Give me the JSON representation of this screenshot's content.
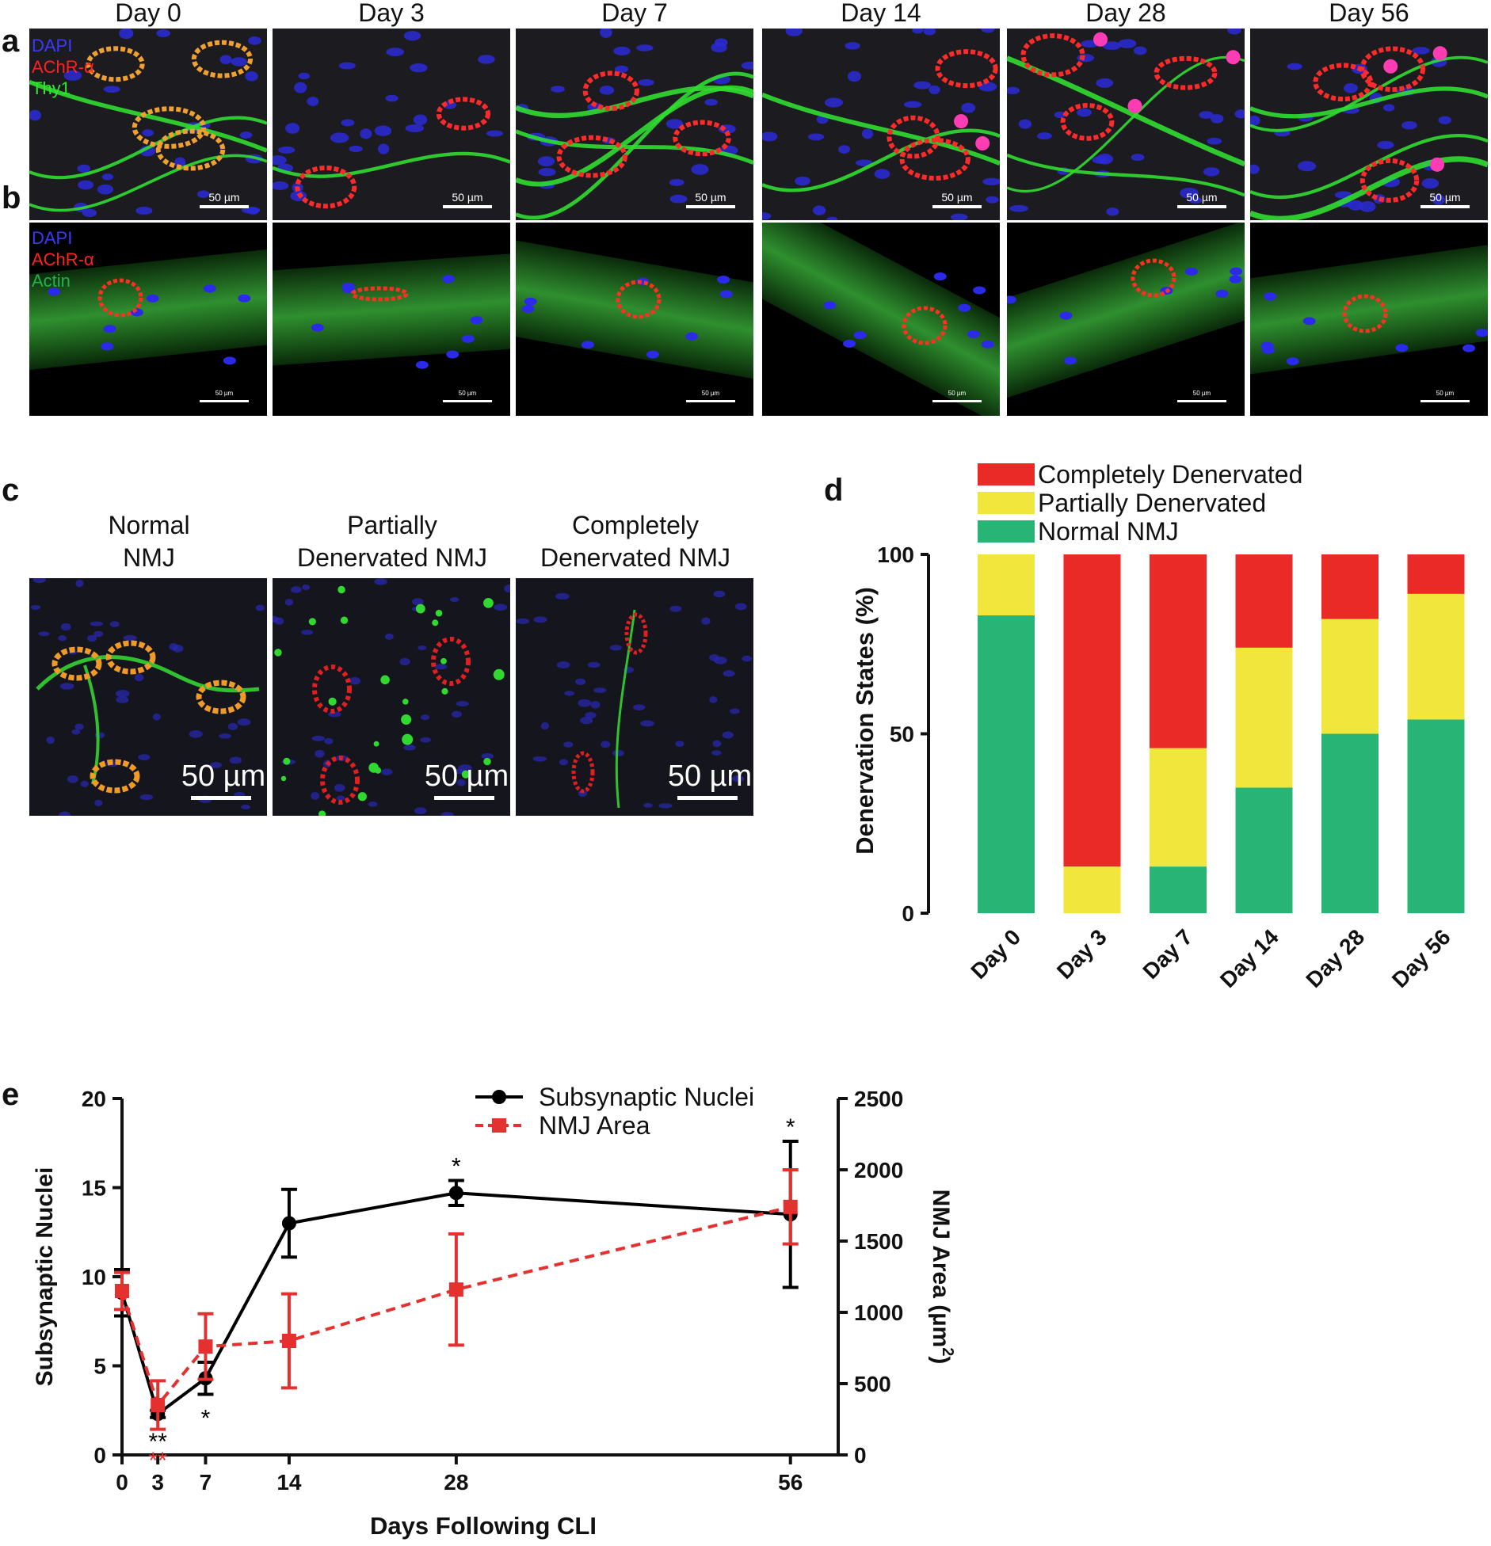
{
  "figure": {
    "panel_labels": [
      "a",
      "b",
      "c",
      "d",
      "e"
    ],
    "day_titles": [
      "Day 0",
      "Day 3",
      "Day 7",
      "Day 14",
      "Day 28",
      "Day 56"
    ],
    "row_a_channels": [
      "DAPI",
      "AChR-α",
      "Thy1"
    ],
    "row_b_channels": [
      "DAPI",
      "AChR-α",
      "Actin"
    ],
    "row_a_scalebar": "50 µm",
    "row_b_scalebar": "50 µm",
    "colors": {
      "dapi": "#3a3aff",
      "achr": "#ff2020",
      "thy1": "#2ee82e",
      "actin": "#22b14c"
    }
  },
  "panel_c": {
    "headers": [
      [
        "Normal",
        "NMJ"
      ],
      [
        "Partially",
        "Denervated NMJ"
      ],
      [
        "Completely",
        "Denervated NMJ"
      ]
    ],
    "scalebar": "50 µm"
  },
  "chart_data": [
    {
      "type": "bar",
      "stacked": true,
      "categories": [
        "Day 0",
        "Day 3",
        "Day 7",
        "Day 14",
        "Day 28",
        "Day 56"
      ],
      "series": [
        {
          "name": "Normal NMJ",
          "color": "#27b475",
          "values": [
            83,
            0,
            13,
            35,
            50,
            54
          ]
        },
        {
          "name": "Partially Denervated",
          "color": "#f0e63c",
          "values": [
            17,
            13,
            33,
            39,
            32,
            35
          ]
        },
        {
          "name": "Completely Denervated",
          "color": "#ea2a26",
          "values": [
            0,
            87,
            54,
            26,
            18,
            11
          ]
        }
      ],
      "ylabel": "Denervation States (%)",
      "ylim": [
        0,
        100
      ],
      "yticks": [
        "0",
        "50",
        "100"
      ],
      "legend_order": [
        "Completely Denervated",
        "Partially Denervated",
        "Normal NMJ"
      ],
      "legend_position": "top"
    },
    {
      "type": "line",
      "x": [
        0,
        3,
        7,
        14,
        28,
        56
      ],
      "xticks": [
        "0",
        "3",
        "7",
        "14",
        "28",
        "56"
      ],
      "xlabel": "Days Following CLI",
      "series": [
        {
          "name": "Subsynaptic Nuclei",
          "axis": "left",
          "color": "#000000",
          "style": "solid",
          "marker": "circle",
          "values": [
            9.1,
            2.3,
            4.3,
            13.0,
            14.7,
            13.5
          ],
          "error": [
            1.3,
            0.2,
            0.9,
            1.9,
            0.7,
            4.1
          ]
        },
        {
          "name": "NMJ Area",
          "axis": "right",
          "color": "#e53030",
          "style": "dashed",
          "marker": "square",
          "values": [
            1150,
            350,
            760,
            800,
            1160,
            1740
          ],
          "error": [
            130,
            170,
            230,
            330,
            390,
            260
          ]
        }
      ],
      "left_axis": {
        "label": "Subsynaptic Nuclei",
        "ylim": [
          0,
          20
        ],
        "ticks": [
          "0",
          "5",
          "10",
          "15",
          "20"
        ]
      },
      "right_axis": {
        "label": "NMJ Area (µm",
        "label_sup": "2",
        "label_close": ")",
        "ylim": [
          0,
          2500
        ],
        "ticks": [
          "0",
          "500",
          "1000",
          "1500",
          "2000",
          "2500"
        ]
      },
      "annotations": [
        {
          "x": 3,
          "text": "**",
          "color": "#000000"
        },
        {
          "x": 3,
          "text": "**",
          "color": "#e53030"
        },
        {
          "x": 7,
          "text": "*",
          "color": "#000000"
        },
        {
          "x": 28,
          "text": "*",
          "color": "#000000"
        },
        {
          "x": 56,
          "text": "*",
          "color": "#000000"
        }
      ],
      "legend_position": "top"
    }
  ]
}
